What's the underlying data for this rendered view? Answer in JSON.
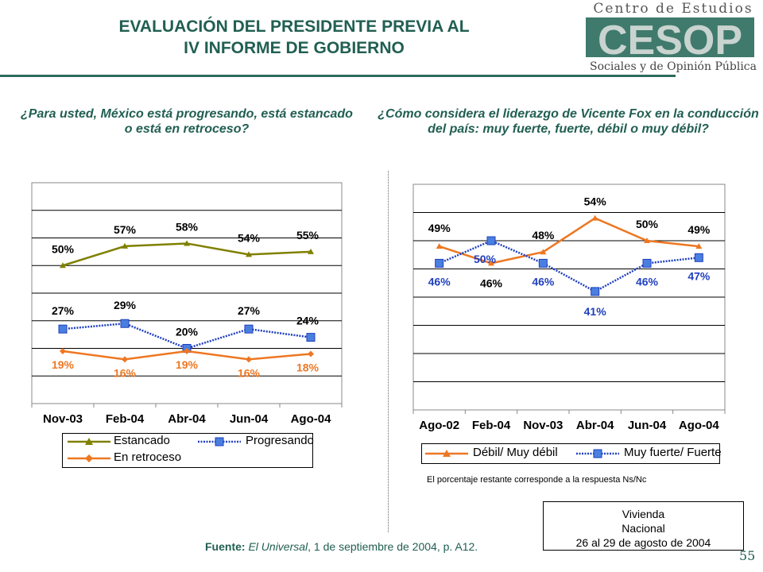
{
  "title": {
    "line1": "EVALUACIÓN DEL PRESIDENTE PREVIA AL",
    "line2": "IV INFORME DE GOBIERNO"
  },
  "logo": {
    "top_text": "Centro de Estudios",
    "acronym": "CESOP",
    "bottom_text": "Sociales y de Opinión Pública"
  },
  "colors": {
    "title": "#215f52",
    "estancado": "#808000",
    "progresando": "#1f3fbf",
    "retroceso": "#ee7722",
    "marker_blue": "#4a7fe0"
  },
  "chart_data": [
    {
      "type": "line",
      "question": "¿Para usted, México está progresando, está estancado o está en retroceso?",
      "categories": [
        "Nov-03",
        "Feb-04",
        "Abr-04",
        "Jun-04",
        "Ago-04"
      ],
      "ylim": [
        0,
        80
      ],
      "grid": true,
      "legend_position": "bottom",
      "series": [
        {
          "name": "Estancado",
          "values": [
            50,
            57,
            58,
            54,
            55
          ],
          "labels": [
            "50%",
            "57%",
            "58%",
            "54%",
            "55%"
          ]
        },
        {
          "name": "Progresando",
          "values": [
            27,
            29,
            20,
            27,
            24
          ],
          "labels": [
            "27%",
            "29%",
            "20%",
            "27%",
            "24%"
          ]
        },
        {
          "name": "En retroceso",
          "values": [
            19,
            16,
            19,
            16,
            18
          ],
          "labels": [
            "19%",
            "16%",
            "19%",
            "16%",
            "18%"
          ]
        }
      ]
    },
    {
      "type": "line",
      "question": "¿Cómo considera el liderazgo de Vicente Fox en la conducción del país: muy fuerte, fuerte, débil o muy débil?",
      "categories": [
        "Ago-02",
        "Feb-04",
        "Nov-03",
        "Abr-04",
        "Jun-04",
        "Ago-04"
      ],
      "ylim": [
        20,
        60
      ],
      "grid": true,
      "legend_position": "bottom",
      "series": [
        {
          "name": "Débil/ Muy débil",
          "values": [
            49,
            46,
            48,
            54,
            50,
            49
          ],
          "labels": [
            "49%",
            "46%",
            "48%",
            "54%",
            "50%",
            "49%"
          ]
        },
        {
          "name": "Muy fuerte/ Fuerte",
          "values": [
            46,
            50,
            46,
            41,
            46,
            47
          ],
          "labels": [
            "46%",
            "50%",
            "46%",
            "41%",
            "46%",
            "47%"
          ]
        }
      ]
    }
  ],
  "note": "El porcentaje restante corresponde a la respuesta Ns/Nc",
  "source": {
    "label": "Fuente:",
    "publication": "El Universal",
    "rest": ", 1 de septiembre de 2004, p. A12."
  },
  "infobox": {
    "line1": "Vivienda",
    "line2": "Nacional",
    "line3": "26 al 29 de agosto de 2004"
  },
  "page_number": "55"
}
